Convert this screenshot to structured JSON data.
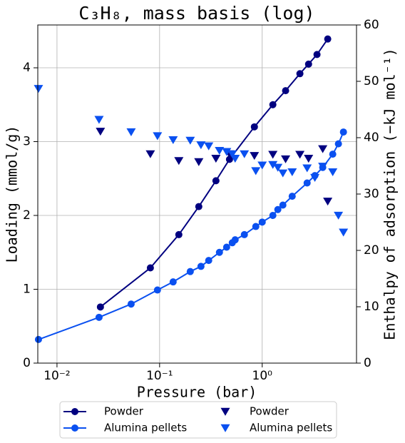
{
  "chart_data": {
    "type": "line",
    "title": "C₃H₈, mass basis (log)",
    "xlabel": "Pressure (bar)",
    "ylabel": "Loading (mmol/g)",
    "y2label": "Enthalpy of adsorption (−kJ mol⁻¹)",
    "xscale": "log",
    "xlim": [
      0.0065,
      8.3
    ],
    "xticks": [
      {
        "value": 0.01,
        "label": "10⁻²"
      },
      {
        "value": 0.1,
        "label": "10⁻¹"
      },
      {
        "value": 1,
        "label": "10⁰"
      }
    ],
    "ylim": [
      0,
      4.58
    ],
    "yticks": [
      0,
      1,
      2,
      3,
      4
    ],
    "y2lim": [
      0,
      60
    ],
    "y2ticks": [
      0,
      10,
      20,
      30,
      40,
      50,
      60
    ],
    "grid": true,
    "legend": "lower center",
    "series": [
      {
        "name": "Powder",
        "color": "#000080",
        "marker": "circle",
        "line": true,
        "x": [
          0.0265,
          0.0813,
          0.154,
          0.241,
          0.354,
          0.48,
          0.839,
          1.27,
          1.69,
          2.33,
          2.83,
          3.42,
          4.35
        ],
        "values": [
          0.76,
          1.29,
          1.74,
          2.12,
          2.47,
          2.76,
          3.2,
          3.5,
          3.69,
          3.92,
          4.05,
          4.18,
          4.39
        ]
      },
      {
        "name": "Alumina pellets",
        "color": "#0a50f0",
        "marker": "circle",
        "line": true,
        "x": [
          0.0066,
          0.0257,
          0.0528,
          0.0953,
          0.1355,
          0.199,
          0.253,
          0.301,
          0.383,
          0.45,
          0.511,
          0.545,
          0.67,
          0.866,
          1.0,
          1.27,
          1.42,
          1.59,
          1.96,
          2.74,
          3.26,
          3.89,
          4.87,
          5.53,
          6.19
        ],
        "values": [
          0.32,
          0.62,
          0.8,
          0.99,
          1.1,
          1.24,
          1.31,
          1.39,
          1.5,
          1.57,
          1.63,
          1.67,
          1.74,
          1.85,
          1.91,
          2.0,
          2.08,
          2.14,
          2.26,
          2.44,
          2.54,
          2.65,
          2.83,
          2.97,
          3.13
        ]
      },
      {
        "name": "Powder",
        "color": "#000080",
        "marker": "triangle-down",
        "line": false,
        "axis": "y2",
        "x": [
          0.0265,
          0.0813,
          0.154,
          0.241,
          0.354,
          0.48,
          0.839,
          1.27,
          1.69,
          2.33,
          2.83,
          3.89,
          4.35
        ],
        "values": [
          41.1,
          37.1,
          35.9,
          35.7,
          36.3,
          37.1,
          36.8,
          37.0,
          36.2,
          37.0,
          36.3,
          38.0,
          28.7
        ]
      },
      {
        "name": "Alumina pellets",
        "color": "#0a50f0",
        "marker": "triangle-down",
        "line": false,
        "axis": "y2",
        "x": [
          0.0066,
          0.0257,
          0.0528,
          0.0953,
          0.1355,
          0.199,
          0.253,
          0.301,
          0.383,
          0.45,
          0.511,
          0.545,
          0.67,
          0.866,
          1.0,
          1.27,
          1.42,
          1.59,
          1.96,
          2.74,
          3.26,
          3.89,
          4.87,
          5.53,
          6.19
        ],
        "values": [
          48.7,
          43.2,
          41.0,
          40.3,
          39.6,
          39.5,
          38.7,
          38.5,
          37.7,
          37.5,
          37.1,
          36.3,
          37.1,
          34.1,
          35.1,
          35.2,
          34.7,
          33.7,
          33.9,
          34.6,
          32.9,
          34.9,
          33.9,
          26.2,
          23.2
        ]
      }
    ]
  }
}
